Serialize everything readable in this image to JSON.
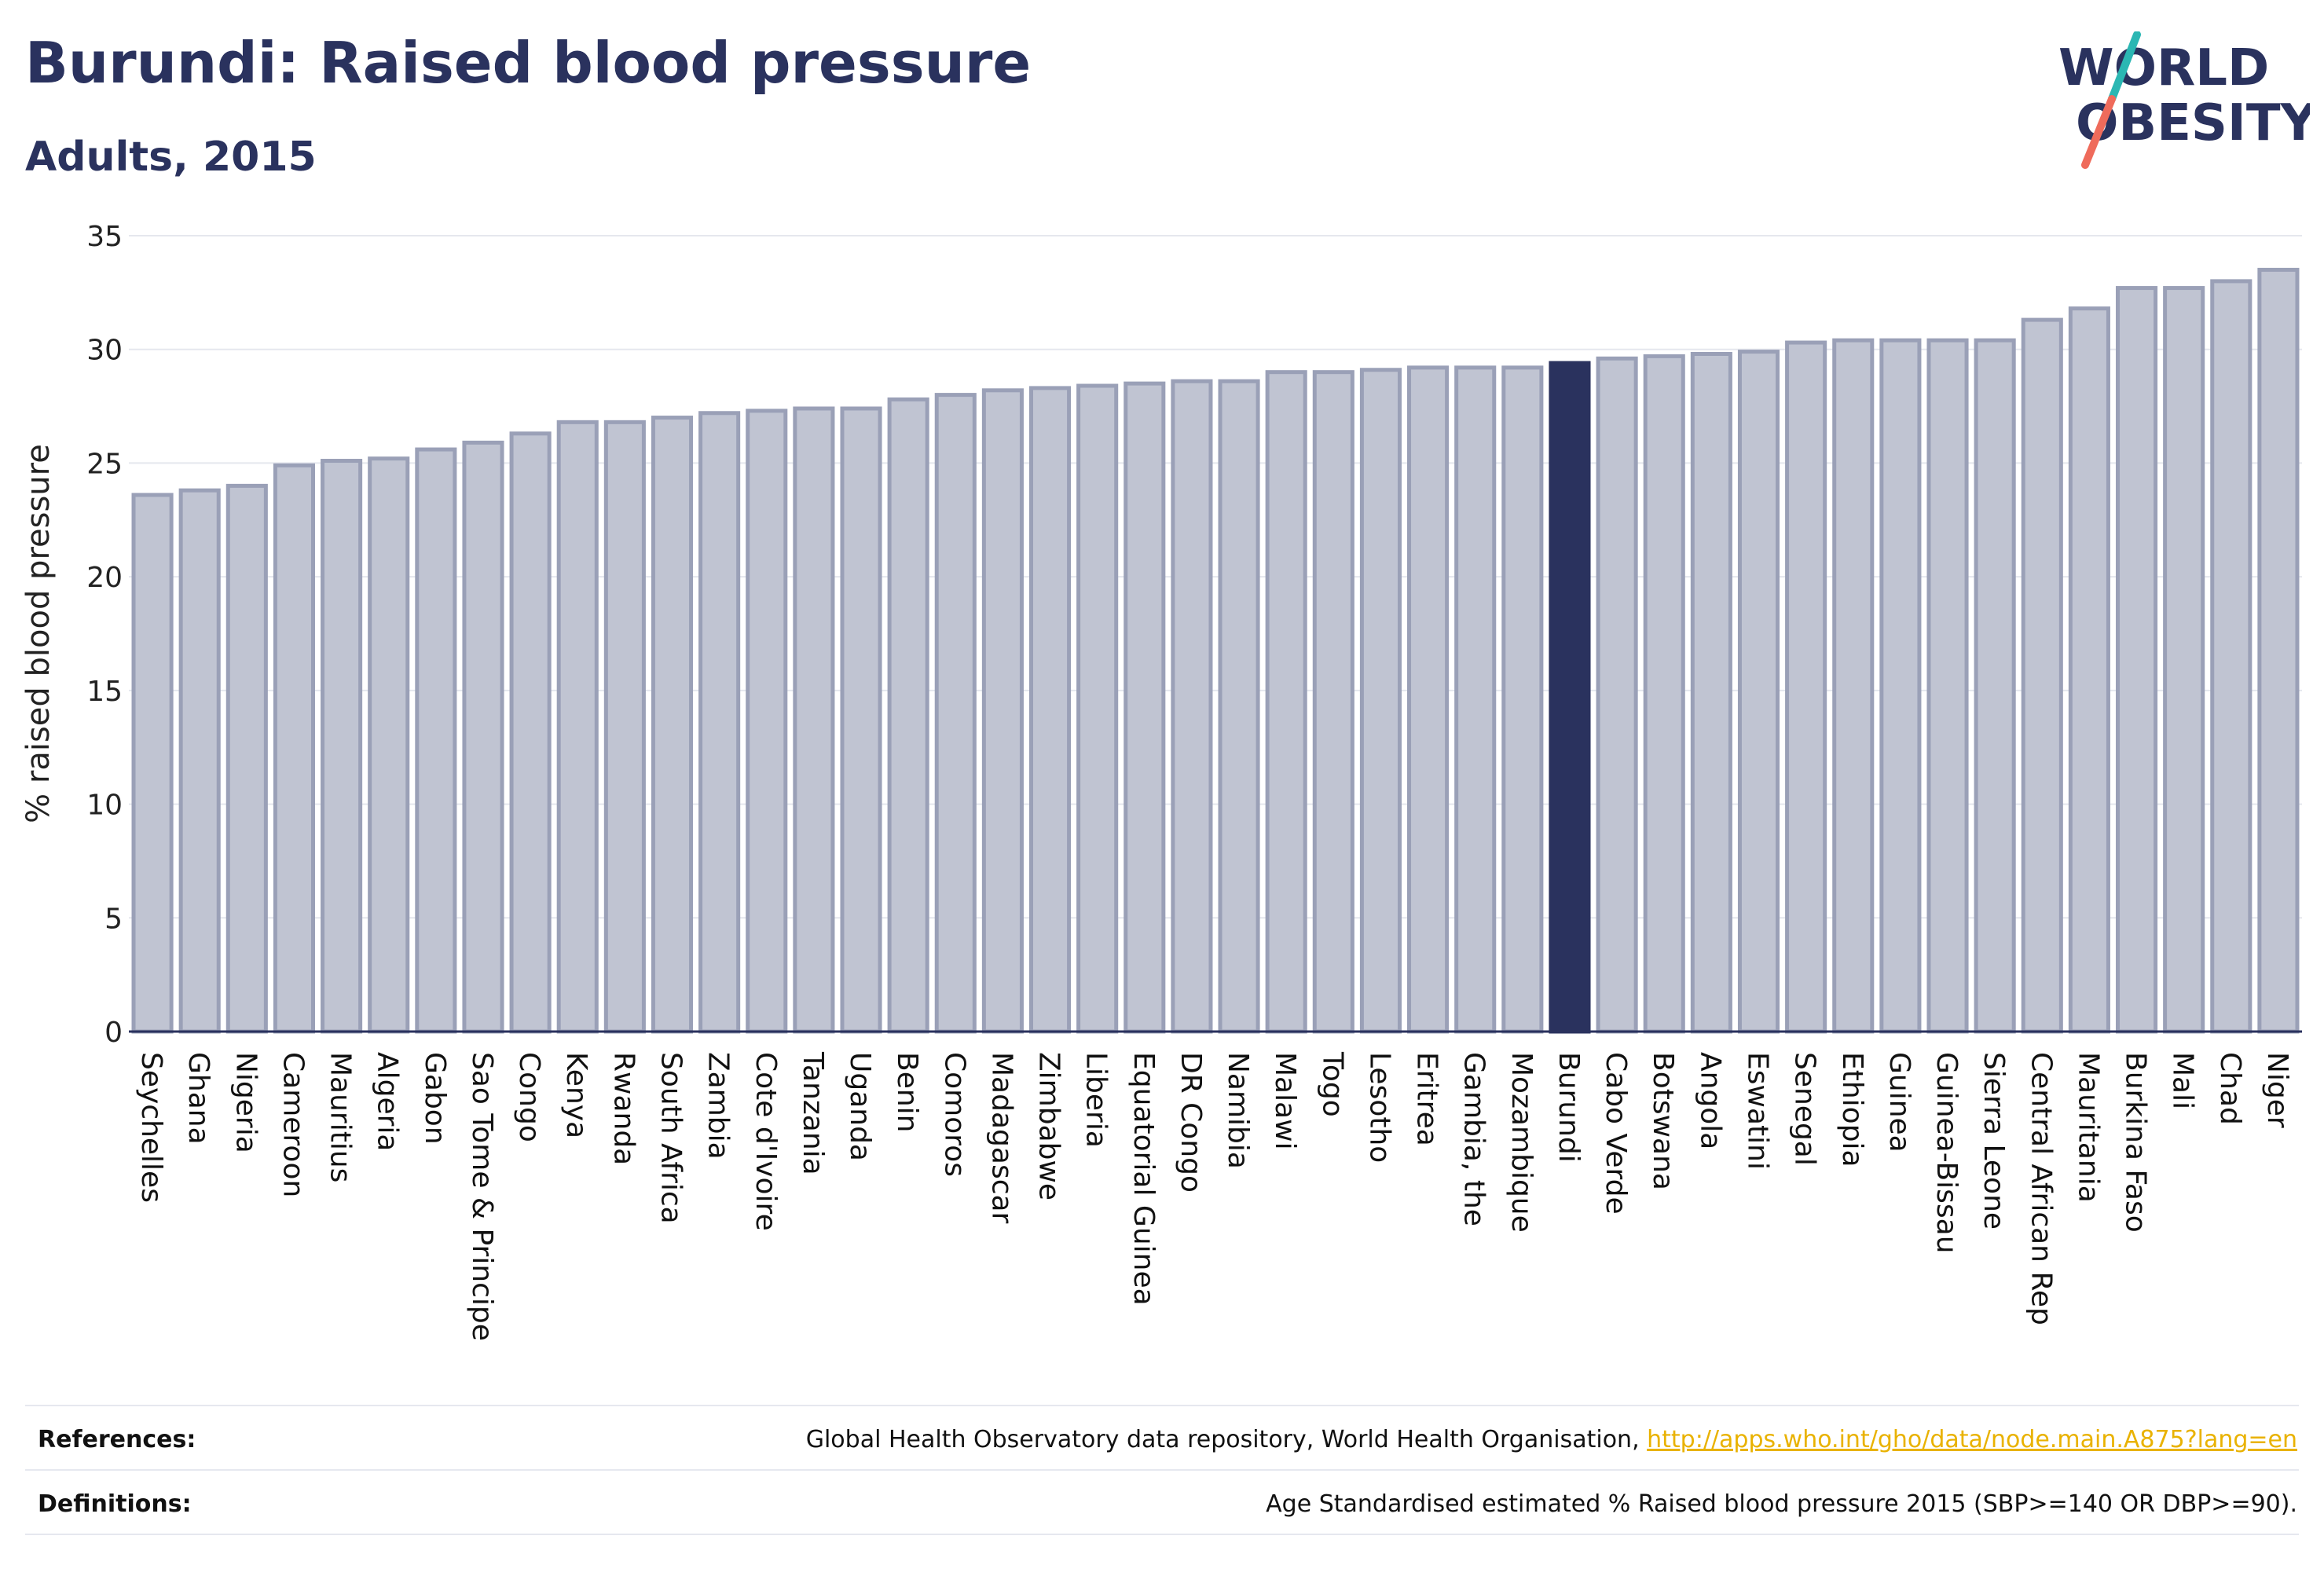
{
  "header": {
    "title": "Burundi: Raised blood pressure",
    "subtitle": "Adults, 2015",
    "logo_text_line1": "WORLD",
    "logo_text_line2": "OBESITY"
  },
  "colors": {
    "highlight": "#2a325e",
    "bar_fill": "#c0c4d2",
    "bar_stroke": "#9aa0b7",
    "logo_slash_teal": "#2bb7b3",
    "logo_slash_coral": "#ef6b5b",
    "link": "#e9b200"
  },
  "chart_data": {
    "type": "bar",
    "ylabel": "% raised blood pressure",
    "xlabel": "",
    "ylim": [
      0,
      35
    ],
    "yticks": [
      0,
      5,
      10,
      15,
      20,
      25,
      30,
      35
    ],
    "grid": true,
    "highlight_category": "Burundi",
    "categories": [
      "Seychelles",
      "Ghana",
      "Nigeria",
      "Cameroon",
      "Mauritius",
      "Algeria",
      "Gabon",
      "Sao Tome & Principe",
      "Congo",
      "Kenya",
      "Rwanda",
      "South Africa",
      "Zambia",
      "Cote d'Ivoire",
      "Tanzania",
      "Uganda",
      "Benin",
      "Comoros",
      "Madagascar",
      "Zimbabwe",
      "Liberia",
      "Equatorial Guinea",
      "DR Congo",
      "Namibia",
      "Malawi",
      "Togo",
      "Lesotho",
      "Eritrea",
      "Gambia, the",
      "Mozambique",
      "Burundi",
      "Cabo Verde",
      "Botswana",
      "Angola",
      "Eswatini",
      "Senegal",
      "Ethiopia",
      "Guinea",
      "Guinea-Bissau",
      "Sierra Leone",
      "Central African Rep",
      "Mauritania",
      "Burkina Faso",
      "Mali",
      "Chad",
      "Niger"
    ],
    "values": [
      23.6,
      23.8,
      24.0,
      24.9,
      25.1,
      25.2,
      25.6,
      25.9,
      26.3,
      26.8,
      26.8,
      27.0,
      27.2,
      27.3,
      27.4,
      27.4,
      27.8,
      28.0,
      28.2,
      28.3,
      28.4,
      28.5,
      28.6,
      28.6,
      29.0,
      29.0,
      29.1,
      29.2,
      29.2,
      29.2,
      29.4,
      29.6,
      29.7,
      29.8,
      29.9,
      30.3,
      30.4,
      30.4,
      30.4,
      30.4,
      31.3,
      31.8,
      32.7,
      32.7,
      33.0,
      33.5
    ]
  },
  "footer": {
    "references_label": "References:",
    "references_text": "Global Health Observatory data repository, World Health Organisation, ",
    "references_link": "http://apps.who.int/gho/data/node.main.A875?lang=en",
    "definitions_label": "Definitions:",
    "definitions_text": "Age Standardised estimated % Raised blood pressure 2015 (SBP>=140 OR DBP>=90)."
  }
}
